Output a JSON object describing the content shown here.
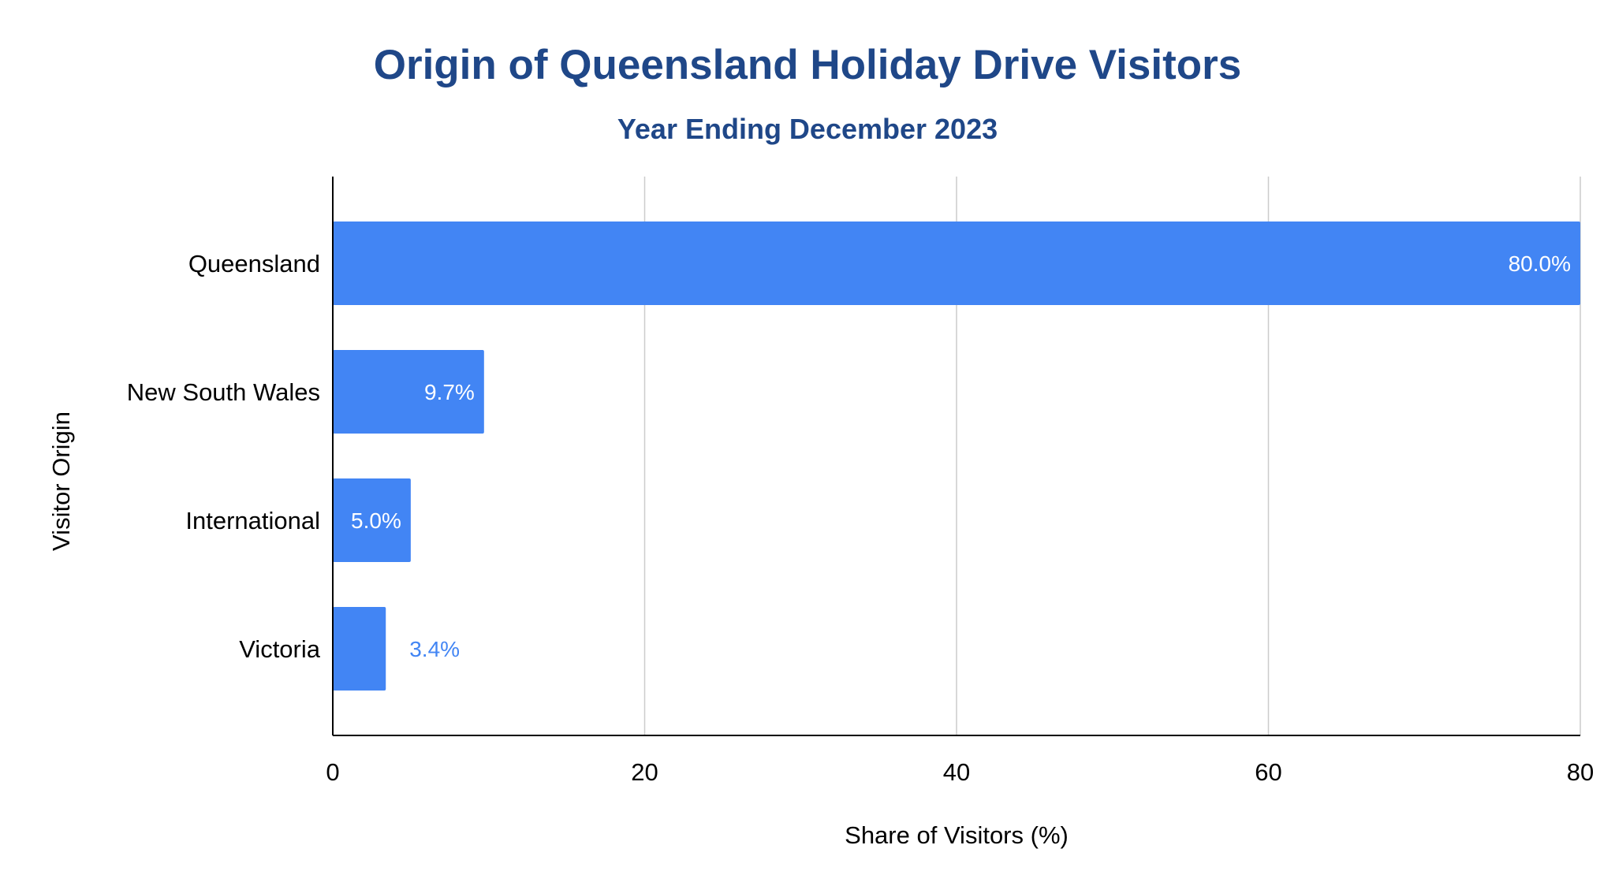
{
  "chart_data": {
    "type": "bar",
    "orientation": "horizontal",
    "title": "Origin of Queensland Holiday Drive Visitors",
    "subtitle": "Year Ending December 2023",
    "xlabel": "Share of Visitors (%)",
    "ylabel": "Visitor Origin",
    "categories": [
      "Queensland",
      "New South Wales",
      "International",
      "Victoria"
    ],
    "values": [
      80.0,
      9.7,
      5.0,
      3.4
    ],
    "data_labels": [
      "80.0%",
      "9.7%",
      "5.0%",
      "3.4%"
    ],
    "xlim": [
      0,
      80
    ],
    "xticks": [
      0,
      20,
      40,
      60,
      80
    ],
    "xtick_labels": [
      "0",
      "20",
      "40",
      "60",
      "80"
    ],
    "grid": "vertical",
    "legend": "none",
    "colors": {
      "bar": "#4285f4",
      "title": "#1f4788",
      "label_inside": "#ffffff",
      "label_outside": "#4285f4",
      "gridline": "#cccccc",
      "axis": "#000000"
    }
  }
}
